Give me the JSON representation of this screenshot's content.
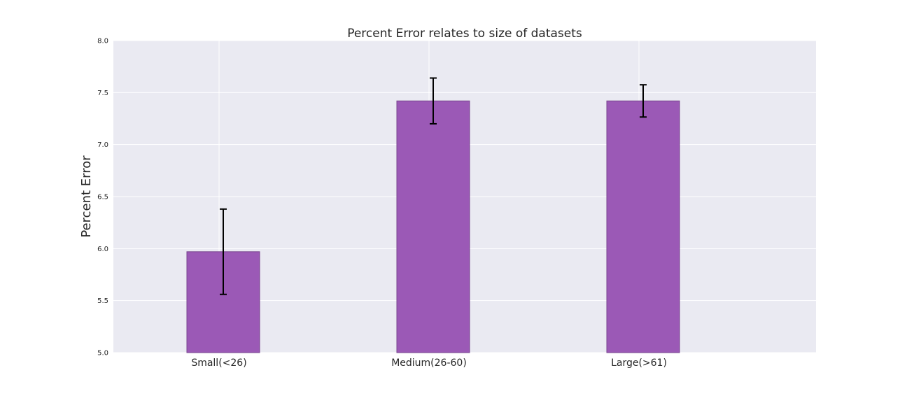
{
  "chart_data": {
    "type": "bar",
    "title": "Percent Error relates to size of datasets",
    "xlabel": "",
    "ylabel": "Percent Error",
    "categories": [
      "Small(<26)",
      "Medium(26-60)",
      "Large(>61)"
    ],
    "values": [
      5.97,
      7.42,
      7.42
    ],
    "errors": [
      0.41,
      0.22,
      0.155
    ],
    "ylim": [
      5.0,
      8.0
    ],
    "yticks": [
      "5.0",
      "5.5",
      "6.0",
      "6.5",
      "7.0",
      "7.5",
      "8.0"
    ],
    "grid": true,
    "colors": {
      "bar": "#9b59b6",
      "bar_edge": "#7a4590",
      "background": "#eaeaf2",
      "grid": "#ffffff",
      "error": "#000000"
    }
  }
}
